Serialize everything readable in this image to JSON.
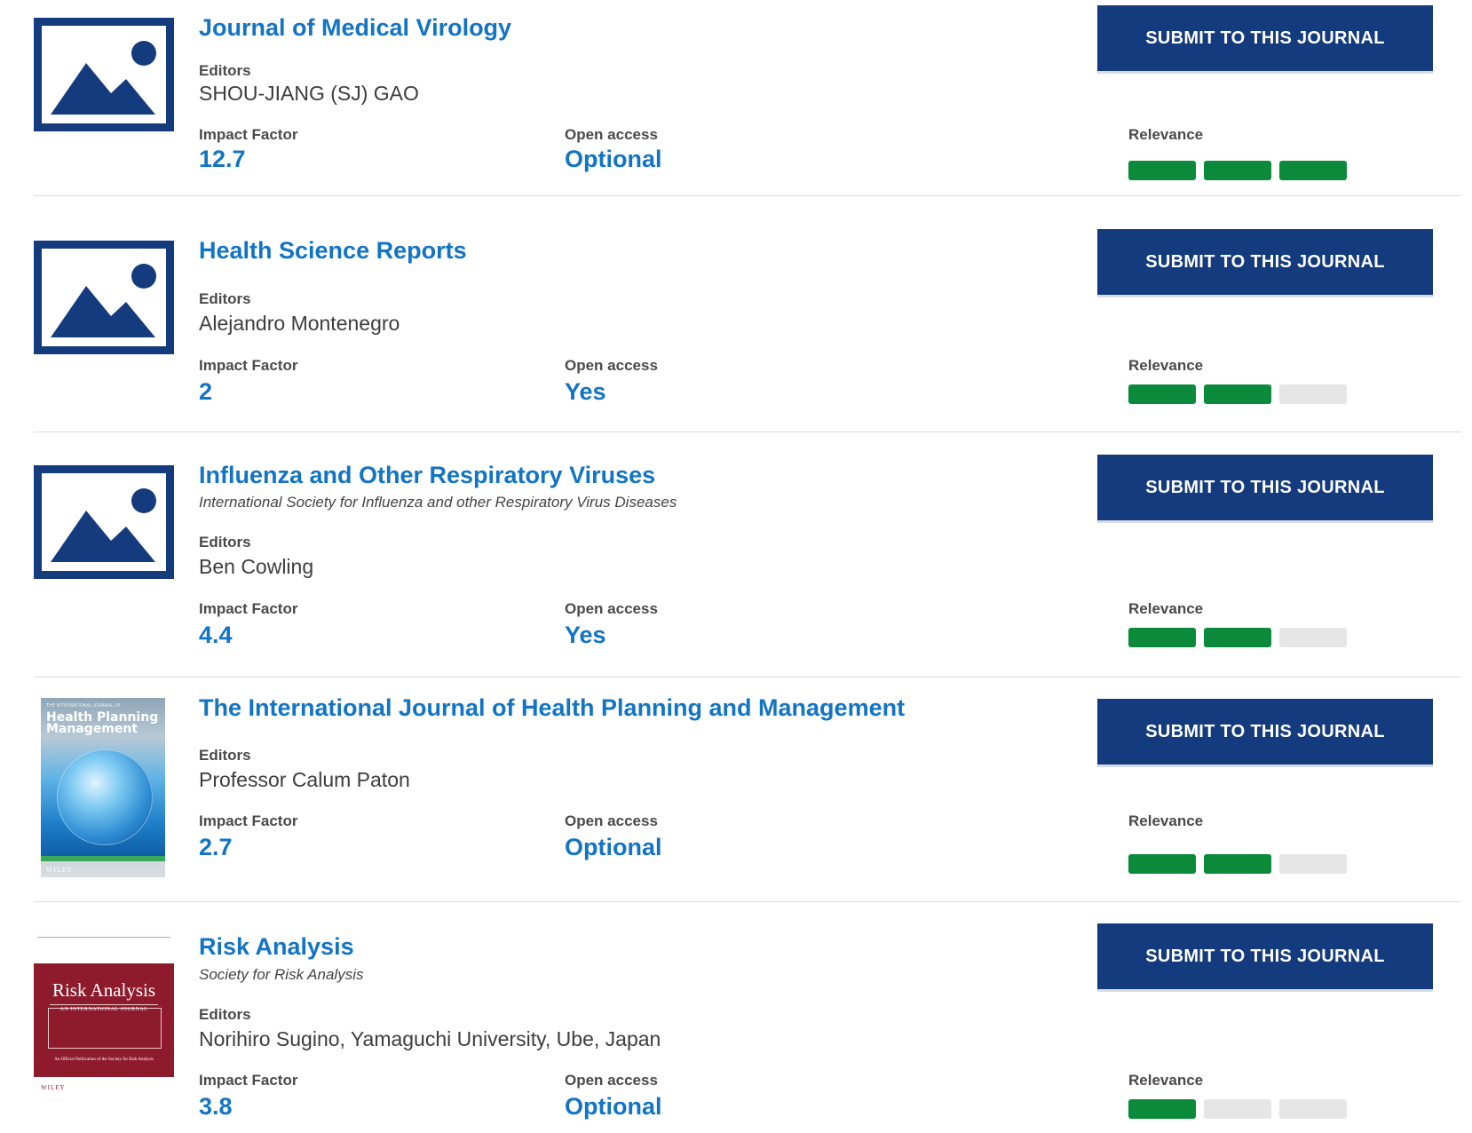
{
  "labels": {
    "editors": "Editors",
    "impact_factor": "Impact Factor",
    "open_access": "Open access",
    "relevance": "Relevance",
    "submit": "SUBMIT TO THIS JOURNAL"
  },
  "colors": {
    "title_blue": "#1274c4",
    "button_navy": "#143b7d",
    "relevance_on": "#0a8a3a",
    "relevance_off": "#e6e6e6"
  },
  "journals": [
    {
      "title": "Journal of Medical Virology",
      "society": "",
      "editors": "SHOU-JIANG (SJ) GAO",
      "impact_factor": "12.7",
      "open_access": "Optional",
      "relevance": 3,
      "relevance_max": 3,
      "thumbnail": "image-placeholder-icon"
    },
    {
      "title": "Health Science Reports",
      "society": "",
      "editors": "Alejandro Montenegro",
      "impact_factor": "2",
      "open_access": "Yes",
      "relevance": 2,
      "relevance_max": 3,
      "thumbnail": "image-placeholder-icon"
    },
    {
      "title": "Influenza and Other Respiratory Viruses",
      "society": "International Society for Influenza and other Respiratory Virus Diseases",
      "editors": "Ben Cowling",
      "impact_factor": "4.4",
      "open_access": "Yes",
      "relevance": 2,
      "relevance_max": 3,
      "thumbnail": "image-placeholder-icon"
    },
    {
      "title": "The International Journal of Health Planning and Management",
      "society": "",
      "editors": "Professor Calum Paton",
      "impact_factor": "2.7",
      "open_access": "Optional",
      "relevance": 2,
      "relevance_max": 3,
      "thumbnail": "journal-cover-health-planning",
      "cover": {
        "kicker": "THE INTERNATIONAL JOURNAL OF",
        "line1": "Health Planning",
        "line2": "Management",
        "publisher": "WILEY"
      }
    },
    {
      "title": "Risk Analysis",
      "society": "Society for Risk Analysis",
      "editors": "Norihiro Sugino, Yamaguchi University, Ube, Japan",
      "impact_factor": "3.8",
      "open_access": "Optional",
      "relevance": 1,
      "relevance_max": 3,
      "thumbnail": "journal-cover-risk-analysis",
      "cover": {
        "title": "Risk Analysis",
        "subtitle": "AN INTERNATIONAL JOURNAL",
        "footer": "An Official Publication of the Society for Risk Analysis",
        "publisher": "WILEY"
      }
    }
  ]
}
